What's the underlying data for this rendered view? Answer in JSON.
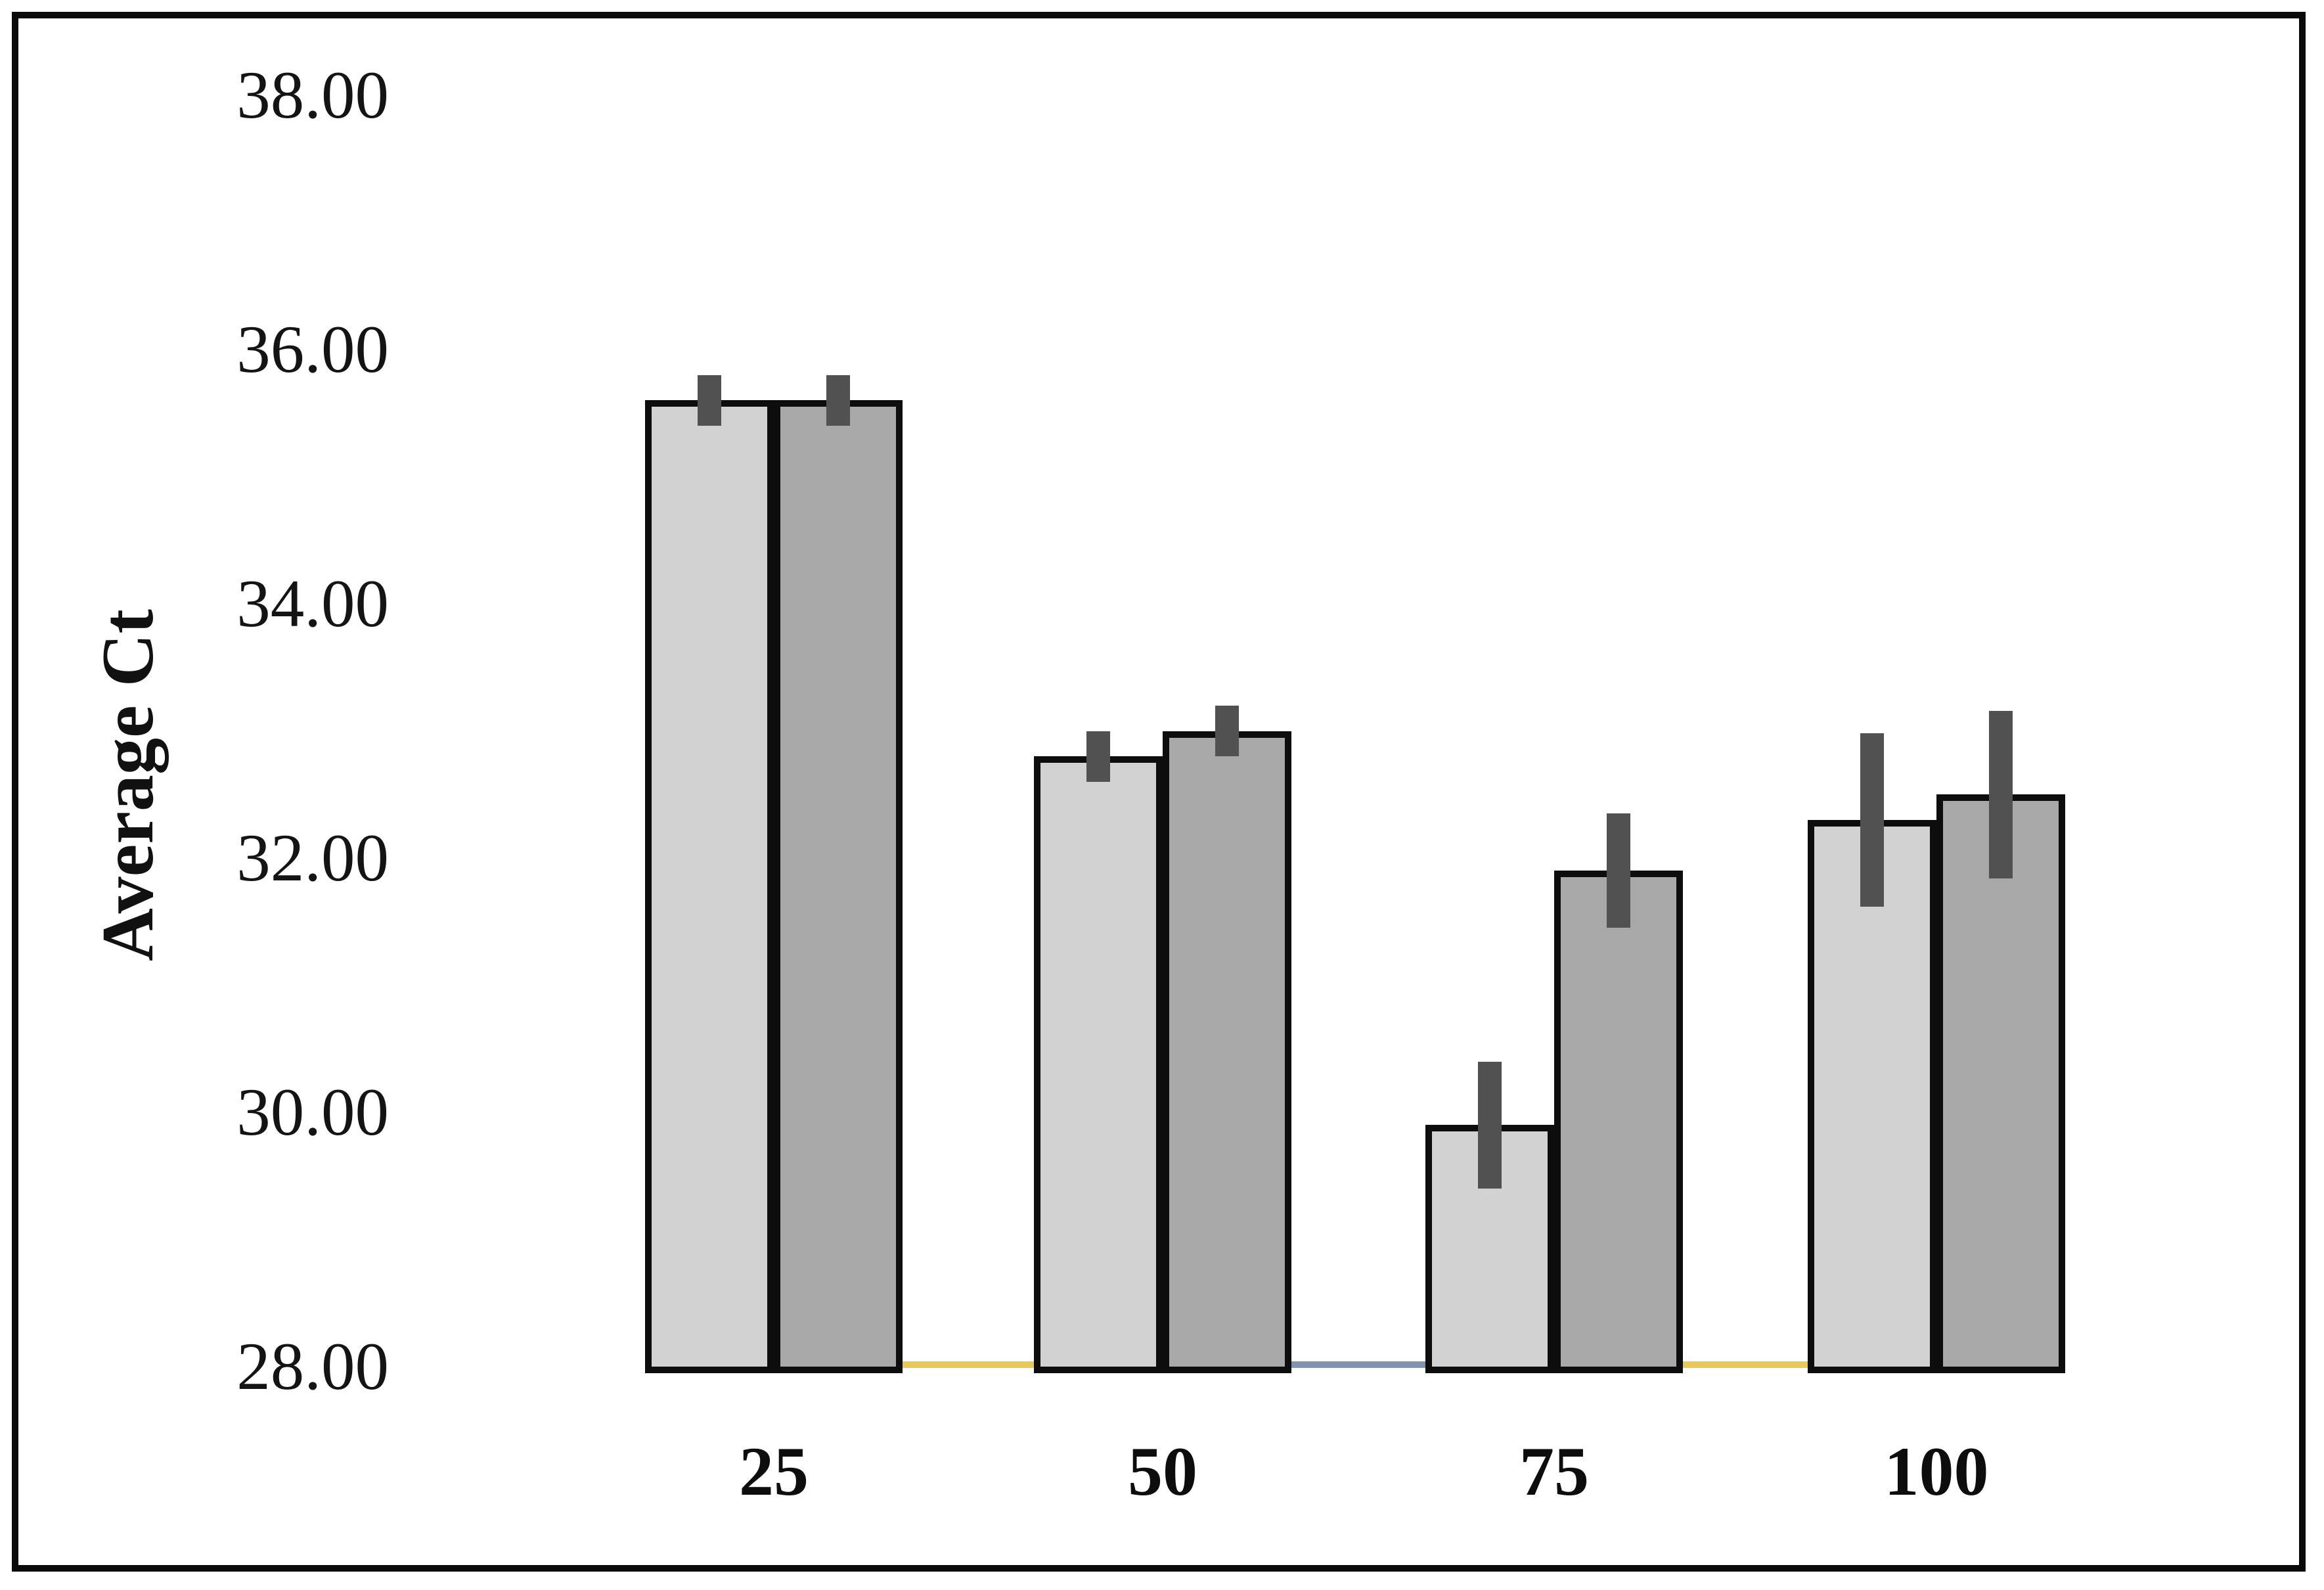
{
  "figure": {
    "background": "#ffffff",
    "border_color": "#0a0a0a"
  },
  "chart_data": {
    "type": "bar",
    "title": "",
    "xlabel": "",
    "ylabel": "Average Ct",
    "categories": [
      "25",
      "50",
      "75",
      "100"
    ],
    "series": [
      {
        "name": "light-gray-series",
        "color": "#D3D2D2",
        "values": [
          35.6,
          32.8,
          29.9,
          32.3
        ],
        "errors": [
          0.2,
          0.2,
          0.5,
          0.68
        ]
      },
      {
        "name": "dark-gray-series",
        "color": "#A9A8A8",
        "values": [
          35.6,
          33.0,
          31.9,
          32.5
        ],
        "errors": [
          0.2,
          0.2,
          0.45,
          0.66
        ]
      }
    ],
    "ylim": [
      28,
      38
    ],
    "ytick_step": 2,
    "yticks": [
      {
        "value": 38,
        "label": "38.00"
      },
      {
        "value": 36,
        "label": "36.00"
      },
      {
        "value": 34,
        "label": "34.00"
      },
      {
        "value": 32,
        "label": "32.00"
      },
      {
        "value": 30,
        "label": "30.00"
      },
      {
        "value": 28,
        "label": "28.00"
      }
    ],
    "bar_outline_color": "#0d0d0d",
    "error_bar_color": "#515151",
    "grid": false,
    "legend": "none",
    "baseline_segments": [
      {
        "gap_after_category": "25",
        "color": "#E9C75F"
      },
      {
        "gap_after_category": "50",
        "color": "#8193AE"
      },
      {
        "gap_after_category": "75",
        "color": "#E9C75F"
      }
    ]
  }
}
